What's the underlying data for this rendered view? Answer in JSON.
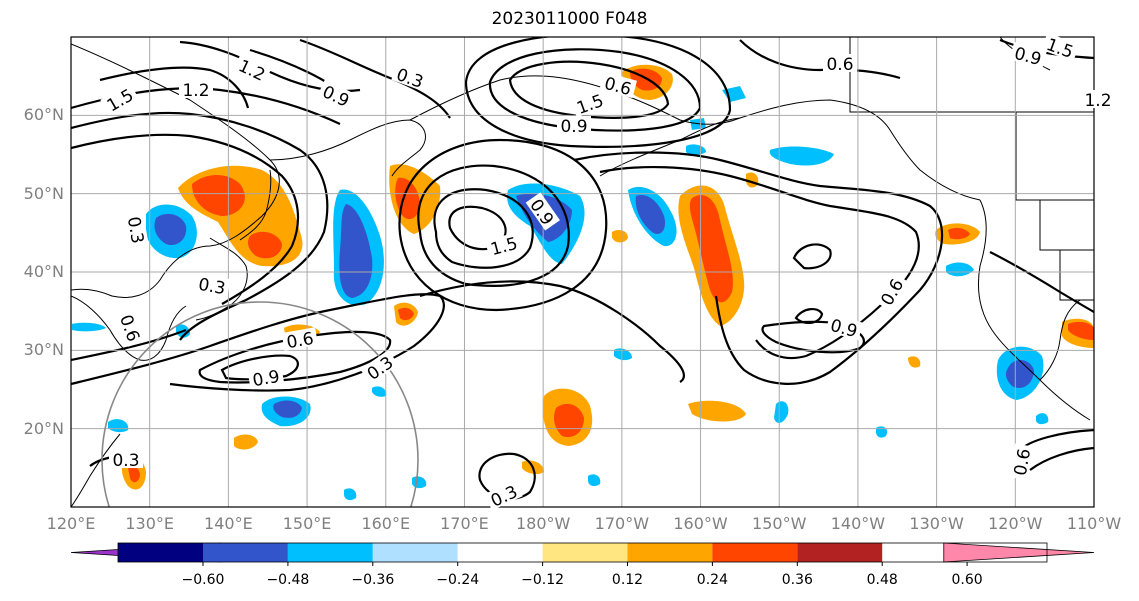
{
  "title": "2023011000 F048",
  "map": {
    "region": "North Pacific",
    "lon_range": [
      120,
      250
    ],
    "lat_range": [
      10,
      70
    ],
    "lat_ticks": [
      "20°N",
      "30°N",
      "40°N",
      "50°N",
      "60°N"
    ],
    "lon_ticks": [
      "120°E",
      "130°E",
      "140°E",
      "150°E",
      "160°E",
      "170°E",
      "180°W",
      "170°W",
      "160°W",
      "150°W",
      "140°W",
      "130°W",
      "120°W",
      "110°W"
    ],
    "gridlines": true
  },
  "contour_labels": [
    "1.5",
    "1.2",
    "0.3",
    "0.9",
    "1.5",
    "1.2",
    "0.6",
    "0.6",
    "0.9",
    "0.9",
    "1.5",
    "1.2",
    "1.5",
    "0.9",
    "0.6",
    "0.9",
    "0.3",
    "0.6",
    "0.9",
    "0.3",
    "0.3",
    "0.3",
    "0.3",
    "0.6",
    "0.6"
  ],
  "colorbar": {
    "tick_labels": [
      "−0.60",
      "−0.48",
      "−0.36",
      "−0.24",
      "−0.12",
      "0.12",
      "0.24",
      "0.36",
      "0.48",
      "0.60"
    ],
    "colors": [
      "#9933cc",
      "#000080",
      "#3355cc",
      "#00bfff",
      "#b0e0ff",
      "#ffffff",
      "#ffe680",
      "#ffa500",
      "#ff4500",
      "#b22222",
      "#ff88aa"
    ],
    "extend": "both"
  }
}
